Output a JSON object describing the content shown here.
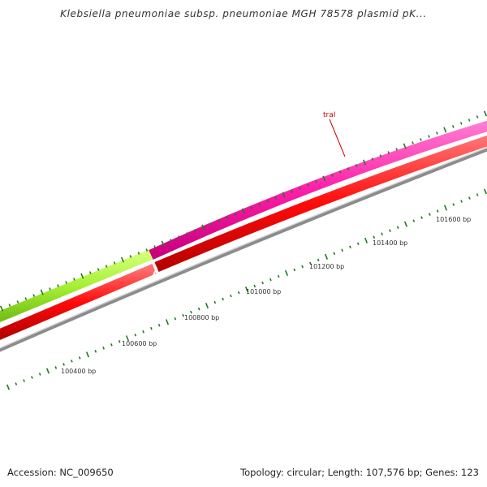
{
  "title": "Klebsiella pneumoniae subsp. pneumoniae MGH 78578 plasmid pK...",
  "footer": {
    "accession": "Accession: NC_009650",
    "summary": "Topology: circular; Length: 107,576 bp; Genes: 123"
  },
  "map": {
    "gene_label": "traI",
    "position_labels": [
      "100400 bp",
      "100600 bp",
      "100800 bp",
      "101000 bp",
      "101200 bp",
      "101400 bp",
      "101600 bp"
    ]
  },
  "colors": {
    "gene_forward_green": "#a6f034",
    "gene_forward_pink": "#ff1ea8",
    "gene_reverse_red": "#ff0b0b",
    "backbone_gray": "#8a8a8a",
    "tick_green": "#1d7d1d",
    "label_red": "#cc0000"
  }
}
